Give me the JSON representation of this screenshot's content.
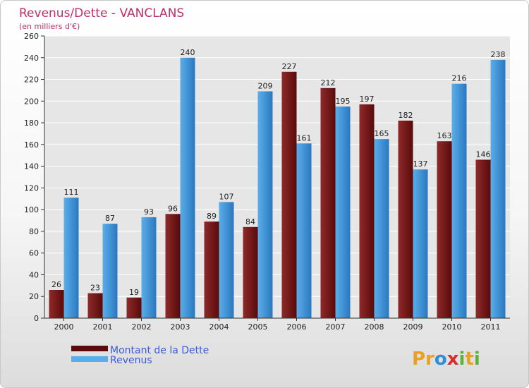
{
  "colors": {
    "title": "#c0306a",
    "dette_dark": "#5a0a0a",
    "dette_light": "#8e2a2a",
    "revenus_dark": "#2a78c0",
    "revenus_light": "#5aaee8",
    "grid": "#ffffff",
    "plot_bg": "#e6e6e6",
    "legend_text": "#3b5bd6"
  },
  "chart_data": {
    "type": "bar",
    "title": "Revenus/Dette - VANCLANS",
    "subtitle": "(en milliers d'€)",
    "categories": [
      "2000",
      "2001",
      "2002",
      "2003",
      "2004",
      "2005",
      "2006",
      "2007",
      "2008",
      "2009",
      "2010",
      "2011"
    ],
    "series": [
      {
        "name": "Montant de la Dette",
        "values": [
          26,
          23,
          19,
          96,
          89,
          84,
          227,
          212,
          197,
          182,
          163,
          146
        ]
      },
      {
        "name": "Revenus",
        "values": [
          111,
          87,
          93,
          240,
          107,
          209,
          161,
          195,
          165,
          137,
          216,
          238
        ]
      }
    ],
    "ylim": [
      0,
      260
    ],
    "yticks": [
      0,
      20,
      40,
      60,
      80,
      100,
      120,
      140,
      160,
      180,
      200,
      220,
      240,
      260
    ],
    "grid": true,
    "legend": "bottom-left"
  },
  "logo": {
    "letters": [
      "P",
      "r",
      "o",
      "x",
      "i",
      "t",
      "i"
    ],
    "colors": [
      "#e8a21e",
      "#e8a21e",
      "#2f8fd8",
      "#d92c2c",
      "#5ab43c",
      "#e8a21e",
      "#5ab43c"
    ]
  }
}
